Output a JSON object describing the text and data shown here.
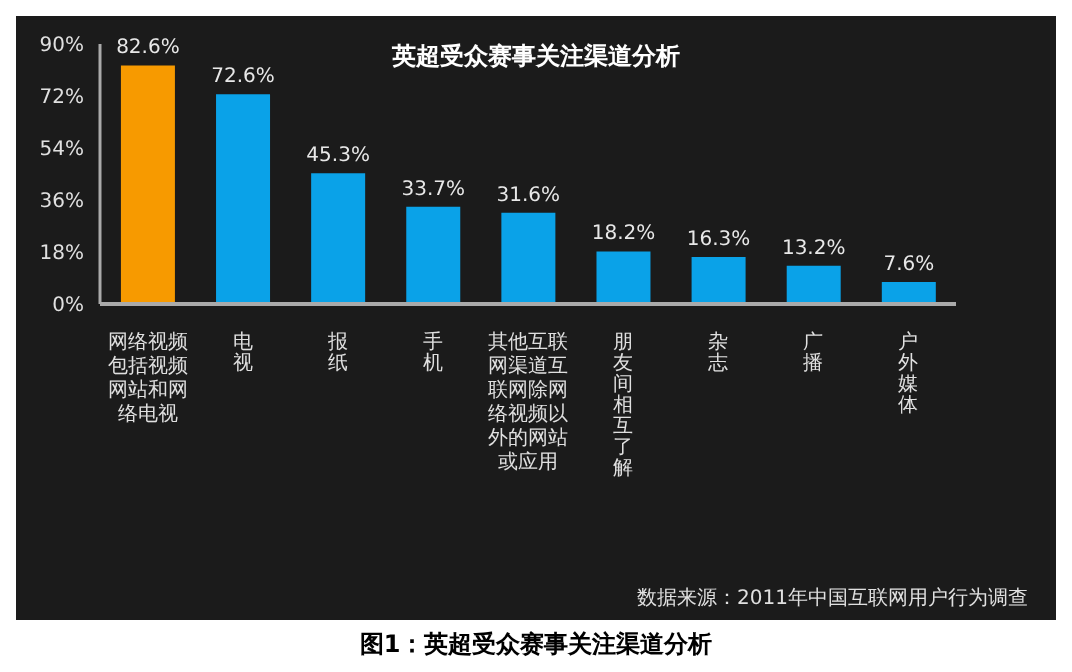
{
  "chart_data": {
    "type": "bar",
    "title": "英超受众赛事关注渠道分析",
    "categories": [
      "网络视频包括视频网站和网络电视",
      "电视",
      "报纸",
      "手机",
      "其他互联网渠道互联网除网络视频以外的网站或应用",
      "朋友间相互了解",
      "杂志",
      "广播",
      "户外媒体"
    ],
    "values": [
      82.6,
      72.6,
      45.3,
      33.7,
      31.6,
      18.2,
      16.3,
      13.2,
      7.6
    ],
    "colors": [
      "#f79a00",
      "#0aa2e8",
      "#0aa2e8",
      "#0aa2e8",
      "#0aa2e8",
      "#0aa2e8",
      "#0aa2e8",
      "#0aa2e8",
      "#0aa2e8"
    ],
    "value_labels": [
      "82.6%",
      "72.6%",
      "45.3%",
      "33.7%",
      "31.6%",
      "18.2%",
      "16.3%",
      "13.2%",
      "7.6%"
    ],
    "ylim": [
      0,
      90
    ],
    "yticks": [
      {
        "value": 0,
        "label": "0%"
      },
      {
        "value": 18,
        "label": "18%"
      },
      {
        "value": 36,
        "label": "36%"
      },
      {
        "value": 54,
        "label": "54%"
      },
      {
        "value": 72,
        "label": "72%"
      },
      {
        "value": 90,
        "label": "90%"
      }
    ],
    "grid": false,
    "annotations": [
      "数据来源：2011年中国互联网用户行为调查",
      "图1：英超受众赛事关注渠道分析"
    ]
  }
}
